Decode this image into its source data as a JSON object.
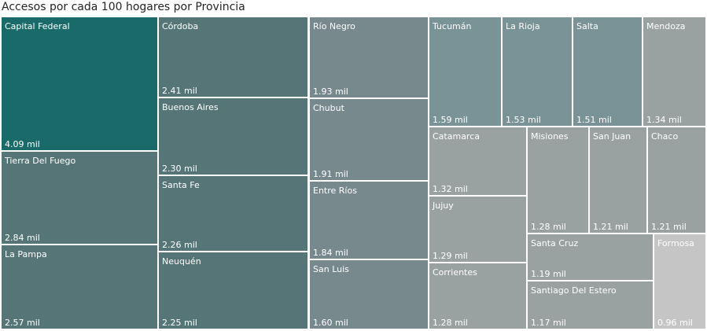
{
  "title": "Accesos por cada 100 hogares por Provincia",
  "chart_data": {
    "type": "treemap",
    "value_unit": "mil",
    "items": [
      {
        "name": "Capital Federal",
        "value": 4.09,
        "label": "4.09 mil",
        "color": "#1a6a6a"
      },
      {
        "name": "Tierra Del Fuego",
        "value": 2.84,
        "label": "2.84 mil",
        "color": "#567576"
      },
      {
        "name": "La Pampa",
        "value": 2.57,
        "label": "2.57 mil",
        "color": "#567576"
      },
      {
        "name": "Córdoba",
        "value": 2.41,
        "label": "2.41 mil",
        "color": "#567576"
      },
      {
        "name": "Buenos Aires",
        "value": 2.3,
        "label": "2.30 mil",
        "color": "#567576"
      },
      {
        "name": "Santa Fe",
        "value": 2.26,
        "label": "2.26 mil",
        "color": "#567576"
      },
      {
        "name": "Neuquén",
        "value": 2.25,
        "label": "2.25 mil",
        "color": "#567576"
      },
      {
        "name": "Río Negro",
        "value": 1.93,
        "label": "1.93 mil",
        "color": "#77898d"
      },
      {
        "name": "Chubut",
        "value": 1.91,
        "label": "1.91 mil",
        "color": "#77898d"
      },
      {
        "name": "Entre Ríos",
        "value": 1.84,
        "label": "1.84 mil",
        "color": "#77898d"
      },
      {
        "name": "San Luis",
        "value": 1.6,
        "label": "1.60 mil",
        "color": "#77898d"
      },
      {
        "name": "Tucumán",
        "value": 1.59,
        "label": "1.59 mil",
        "color": "#7a9396"
      },
      {
        "name": "La Rioja",
        "value": 1.53,
        "label": "1.53 mil",
        "color": "#7a9396"
      },
      {
        "name": "Salta",
        "value": 1.51,
        "label": "1.51 mil",
        "color": "#7a9396"
      },
      {
        "name": "Mendoza",
        "value": 1.34,
        "label": "1.34 mil",
        "color": "#9aa1a1"
      },
      {
        "name": "Catamarca",
        "value": 1.32,
        "label": "1.32 mil",
        "color": "#9aa1a1"
      },
      {
        "name": "Jujuy",
        "value": 1.29,
        "label": "1.29 mil",
        "color": "#9aa1a1"
      },
      {
        "name": "Corrientes",
        "value": 1.28,
        "label": "1.28 mil",
        "color": "#9aa1a1"
      },
      {
        "name": "Misiones",
        "value": 1.28,
        "label": "1.28 mil",
        "color": "#9aa1a1"
      },
      {
        "name": "San Juan",
        "value": 1.21,
        "label": "1.21 mil",
        "color": "#9aa1a1"
      },
      {
        "name": "Chaco",
        "value": 1.21,
        "label": "1.21 mil",
        "color": "#9aa1a1"
      },
      {
        "name": "Santa Cruz",
        "value": 1.19,
        "label": "1.19 mil",
        "color": "#9aa1a1"
      },
      {
        "name": "Santiago Del Estero",
        "value": 1.17,
        "label": "1.17 mil",
        "color": "#9aa1a1"
      },
      {
        "name": "Formosa",
        "value": 0.96,
        "label": "0.96 mil",
        "color": "#c5c5c5"
      }
    ]
  }
}
